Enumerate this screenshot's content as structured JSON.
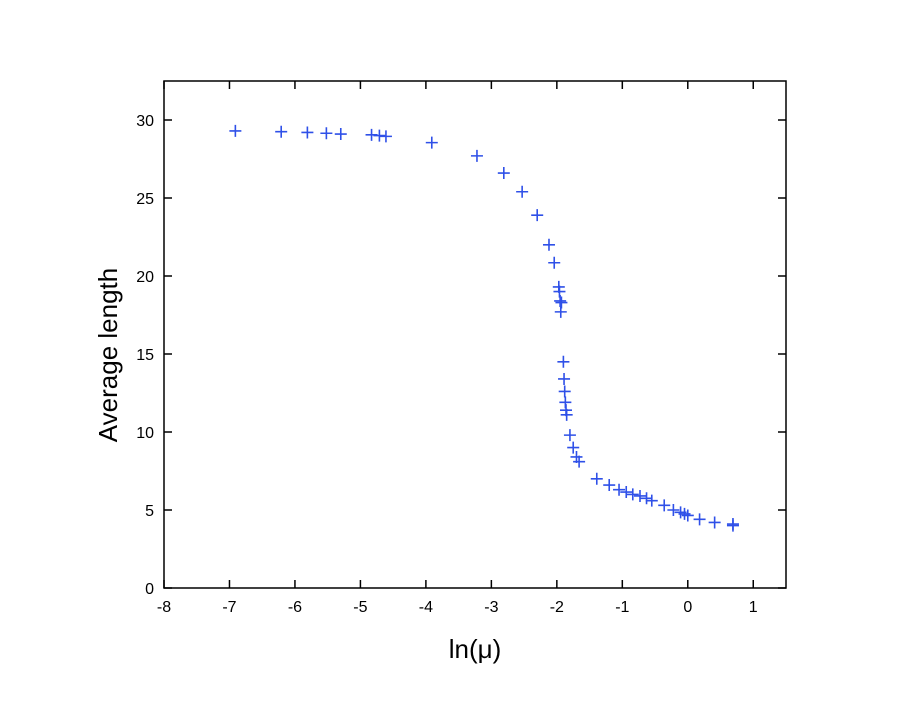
{
  "chart_data": {
    "type": "scatter",
    "x_label": "ln(μ)",
    "y_label": "Average length",
    "color": "#2f50e8",
    "marker": "+",
    "xlim": [
      -8,
      1.5
    ],
    "xticks": [
      -8,
      -7,
      -6,
      -5,
      -4,
      -3,
      -2,
      -1,
      0,
      1
    ],
    "ylim": [
      0,
      32.5
    ],
    "yticks": [
      0,
      5,
      10,
      15,
      20,
      25,
      30
    ],
    "x": [
      -6.91,
      -6.21,
      -5.81,
      -5.52,
      -5.3,
      -4.83,
      -4.71,
      -4.61,
      -3.91,
      -3.22,
      -2.81,
      -2.53,
      -2.3,
      -2.12,
      -2.04,
      -1.97,
      -1.96,
      -1.95,
      -1.93,
      -1.94,
      -1.9,
      -1.89,
      -1.88,
      -1.87,
      -1.86,
      -1.85,
      -1.8,
      -1.75,
      -1.7,
      -1.66,
      -1.39,
      -1.2,
      -1.05,
      -0.94,
      -0.84,
      -0.73,
      -0.63,
      -0.55,
      -0.36,
      -0.22,
      -0.11,
      -0.05,
      0.0,
      0.18,
      0.41,
      0.69,
      0.69
    ],
    "values": [
      29.3,
      29.25,
      29.2,
      29.15,
      29.1,
      29.05,
      29.0,
      28.95,
      28.55,
      27.7,
      26.6,
      25.4,
      23.9,
      22.0,
      20.85,
      19.3,
      19.0,
      18.4,
      18.3,
      17.7,
      14.5,
      13.4,
      12.6,
      11.9,
      11.4,
      11.1,
      9.8,
      9.0,
      8.4,
      8.1,
      7.0,
      6.6,
      6.3,
      6.15,
      6.0,
      5.9,
      5.75,
      5.6,
      5.3,
      5.0,
      4.85,
      4.75,
      4.65,
      4.4,
      4.2,
      4.1,
      4.0
    ]
  }
}
